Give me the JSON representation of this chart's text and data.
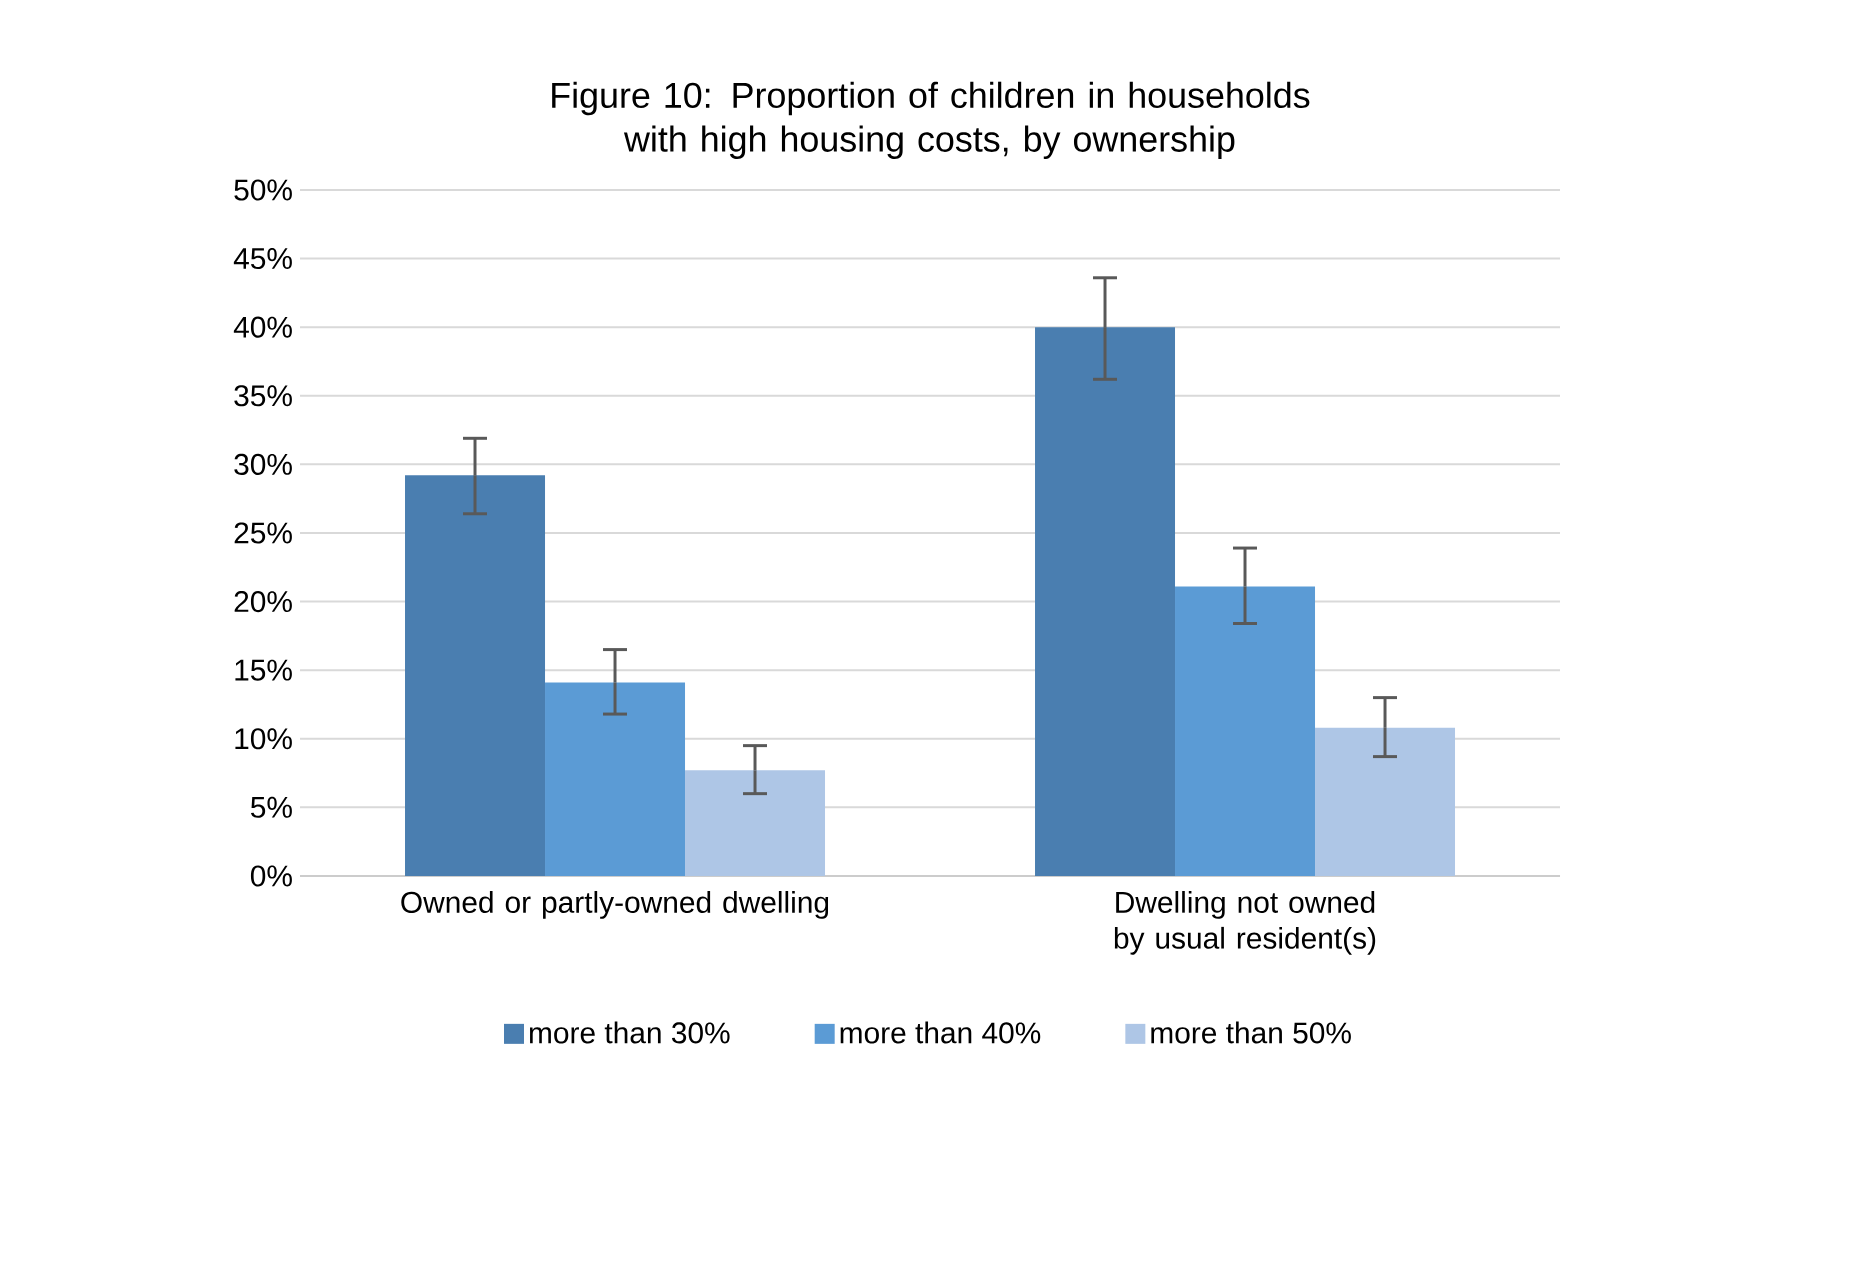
{
  "chart_data": {
    "type": "bar",
    "title": "Figure 10: Proportion of children in households with high housing costs, by ownership",
    "categories": [
      "Owned or partly-owned dwelling",
      "Dwelling not owned by usual resident(s)"
    ],
    "series": [
      {
        "name": "more than 30%",
        "color": "#4a7eb0",
        "values": [
          29.2,
          40.0
        ],
        "errors": [
          [
            26.4,
            31.9
          ],
          [
            36.2,
            43.6
          ]
        ]
      },
      {
        "name": "more than 40%",
        "color": "#5b9bd5",
        "values": [
          14.1,
          21.1
        ],
        "errors": [
          [
            11.8,
            16.5
          ],
          [
            18.4,
            23.9
          ]
        ]
      },
      {
        "name": "more than 50%",
        "color": "#aec6e6",
        "values": [
          7.7,
          10.8
        ],
        "errors": [
          [
            6.0,
            9.5
          ],
          [
            8.7,
            13.0
          ]
        ]
      }
    ],
    "ylim": [
      0,
      50
    ],
    "yticks": [
      {
        "value": 0,
        "label": "0%"
      },
      {
        "value": 5,
        "label": "5%"
      },
      {
        "value": 10,
        "label": "10%"
      },
      {
        "value": 15,
        "label": "15%"
      },
      {
        "value": 20,
        "label": "20%"
      },
      {
        "value": 25,
        "label": "25%"
      },
      {
        "value": 30,
        "label": "30%"
      },
      {
        "value": 35,
        "label": "35%"
      },
      {
        "value": 40,
        "label": "40%"
      },
      {
        "value": 45,
        "label": "45%"
      },
      {
        "value": 50,
        "label": "50%"
      }
    ],
    "grid": "y",
    "legend": "bottom"
  }
}
